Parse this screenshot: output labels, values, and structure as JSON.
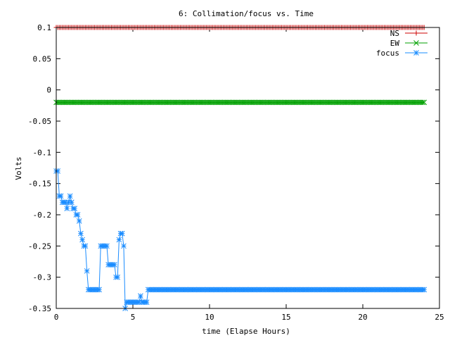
{
  "chart_data": {
    "type": "line",
    "title": "6: Collimation/focus vs. Time",
    "xlabel": "time (Elapse Hours)",
    "ylabel": "Volts",
    "xlim": [
      0,
      25
    ],
    "ylim": [
      -0.35,
      0.1
    ],
    "x_ticks": [
      0,
      5,
      10,
      15,
      20,
      25
    ],
    "y_ticks": [
      0.1,
      0.05,
      0,
      -0.05,
      -0.1,
      -0.15,
      -0.2,
      -0.25,
      -0.3,
      -0.35
    ],
    "x_tick_labels": [
      "0",
      "5",
      "10",
      "15",
      "20",
      "25"
    ],
    "y_tick_labels": [
      "0.1",
      "0.05",
      "0",
      "-0.05",
      "-0.1",
      "-0.15",
      "-0.2",
      "-0.25",
      "-0.3",
      "-0.35"
    ],
    "legend_position": "top-right",
    "x_range": [
      0,
      24
    ],
    "point_spacing": 0.1,
    "series": [
      {
        "name": "NS",
        "color": "#cc0000",
        "marker": "plus",
        "constant_value": 0.1
      },
      {
        "name": "EW",
        "color": "#00a000",
        "marker": "cross",
        "constant_value": -0.02
      },
      {
        "name": "focus",
        "color": "#1a8cff",
        "marker": "star",
        "steps": [
          [
            0,
            -0.13
          ],
          [
            0.15,
            -0.15
          ],
          [
            0.2,
            -0.17
          ],
          [
            0.4,
            -0.18
          ],
          [
            0.7,
            -0.19
          ],
          [
            0.8,
            -0.18
          ],
          [
            0.9,
            -0.17
          ],
          [
            1.0,
            -0.18
          ],
          [
            1.1,
            -0.19
          ],
          [
            1.3,
            -0.2
          ],
          [
            1.5,
            -0.21
          ],
          [
            1.6,
            -0.23
          ],
          [
            1.7,
            -0.24
          ],
          [
            1.8,
            -0.25
          ],
          [
            2.0,
            -0.29
          ],
          [
            2.1,
            -0.32
          ],
          [
            2.9,
            -0.25
          ],
          [
            3.4,
            -0.28
          ],
          [
            3.9,
            -0.3
          ],
          [
            4.1,
            -0.24
          ],
          [
            4.2,
            -0.23
          ],
          [
            4.4,
            -0.25
          ],
          [
            4.5,
            -0.35
          ],
          [
            4.6,
            -0.34
          ],
          [
            5.5,
            -0.33
          ],
          [
            5.6,
            -0.34
          ],
          [
            6.0,
            -0.32
          ]
        ],
        "end_value": -0.32
      }
    ]
  }
}
